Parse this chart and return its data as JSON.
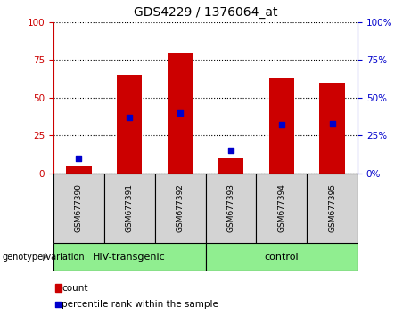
{
  "title": "GDS4229 / 1376064_at",
  "samples": [
    "GSM677390",
    "GSM677391",
    "GSM677392",
    "GSM677393",
    "GSM677394",
    "GSM677395"
  ],
  "count_values": [
    5,
    65,
    79,
    10,
    63,
    60
  ],
  "percentile_values": [
    10,
    37,
    40,
    15,
    32,
    33
  ],
  "groups": [
    {
      "label": "HIV-transgenic",
      "start": 0,
      "end": 2,
      "color": "#90EE90"
    },
    {
      "label": "control",
      "start": 3,
      "end": 5,
      "color": "#90EE90"
    }
  ],
  "group_label": "genotype/variation",
  "left_axis_color": "#CC0000",
  "right_axis_color": "#0000CC",
  "bar_color": "#CC0000",
  "dot_color": "#0000CC",
  "ylim": [
    0,
    100
  ],
  "yticks": [
    0,
    25,
    50,
    75,
    100
  ],
  "plot_bg": "#ffffff",
  "sample_box_color": "#d3d3d3",
  "legend_count_label": "count",
  "legend_percentile_label": "percentile rank within the sample",
  "bar_width": 0.5
}
